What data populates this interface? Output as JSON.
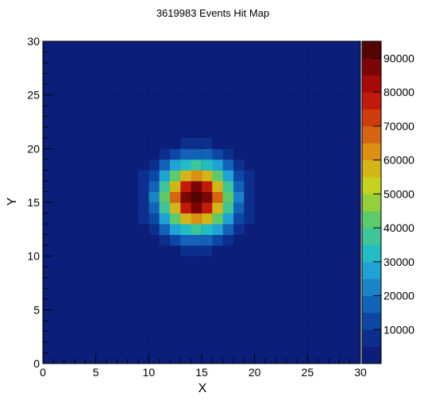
{
  "chart_data": {
    "type": "heatmap",
    "title": "3619983 Events Hit Map",
    "xlabel": "X",
    "ylabel": "Y",
    "xlim": [
      0,
      30
    ],
    "ylim": [
      0,
      30
    ],
    "x_ticks": [
      "0",
      "5",
      "10",
      "15",
      "20",
      "25",
      "30"
    ],
    "y_ticks": [
      "0",
      "5",
      "10",
      "15",
      "20",
      "25",
      "30"
    ],
    "grid": true,
    "bins": 30,
    "zlim": [
      0,
      95000
    ],
    "colorbar_ticks": [
      "10000",
      "20000",
      "30000",
      "40000",
      "50000",
      "60000",
      "70000",
      "80000",
      "90000"
    ],
    "palette": [
      "#0a1e7a",
      "#0c2f8e",
      "#0d47a6",
      "#1263b8",
      "#1a84c9",
      "#1fa3d4",
      "#22bcc4",
      "#3cc69a",
      "#5ecb6a",
      "#93d03a",
      "#c3d31e",
      "#d4b517",
      "#d99013",
      "#d66410",
      "#cf3d0d",
      "#c21b0b",
      "#a80a0a",
      "#7c0606",
      "#550404"
    ],
    "peak": {
      "x": 14.5,
      "y": 15.5,
      "value": 95000
    },
    "sigma": {
      "x": 2.3,
      "y": 2.2
    },
    "cell_threshold": 4000
  }
}
